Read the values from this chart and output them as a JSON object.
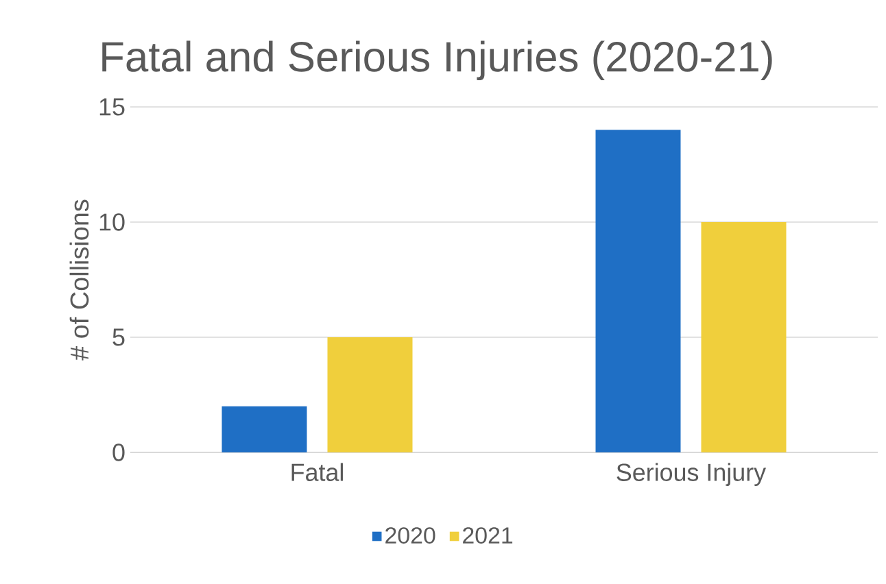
{
  "chart_data": {
    "type": "bar",
    "title": "Fatal and Serious Injuries (2020-21)",
    "ylabel": "# of Collisions",
    "categories": [
      "Fatal",
      "Serious Injury"
    ],
    "series": [
      {
        "name": "2020",
        "color": "#1f6fc5",
        "values": [
          2,
          14
        ]
      },
      {
        "name": "2021",
        "color": "#f0cf3c",
        "values": [
          5,
          10
        ]
      }
    ],
    "ylim": [
      0,
      15
    ],
    "yticks": [
      0,
      5,
      10,
      15
    ],
    "grid": "y",
    "legend": "bottom"
  }
}
